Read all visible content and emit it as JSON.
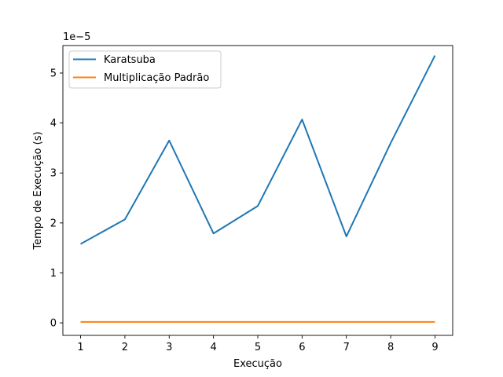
{
  "chart_data": {
    "type": "line",
    "title": "",
    "xlabel": "Execução",
    "ylabel": "Tempo de Execução (s)",
    "y_offset_label": "1e−5",
    "y_scale": 1e-05,
    "x": [
      1,
      2,
      3,
      4,
      5,
      6,
      7,
      8,
      9
    ],
    "xlim": [
      0.6,
      9.4
    ],
    "ylim": [
      -0.25,
      5.55
    ],
    "x_ticks": [
      "1",
      "2",
      "3",
      "4",
      "5",
      "6",
      "7",
      "8",
      "9"
    ],
    "y_ticks": [
      "0",
      "1",
      "2",
      "3",
      "4",
      "5"
    ],
    "grid": false,
    "legend_position": "top-left",
    "series": [
      {
        "name": "Karatsuba",
        "color": "#1f77b4",
        "values": [
          1.58,
          2.07,
          3.65,
          1.79,
          2.34,
          4.07,
          1.73,
          3.6,
          5.35
        ]
      },
      {
        "name": "Multiplicação Padrão",
        "color": "#ff7f0e",
        "values": [
          0.02,
          0.02,
          0.02,
          0.02,
          0.02,
          0.02,
          0.02,
          0.02,
          0.02
        ]
      }
    ]
  }
}
